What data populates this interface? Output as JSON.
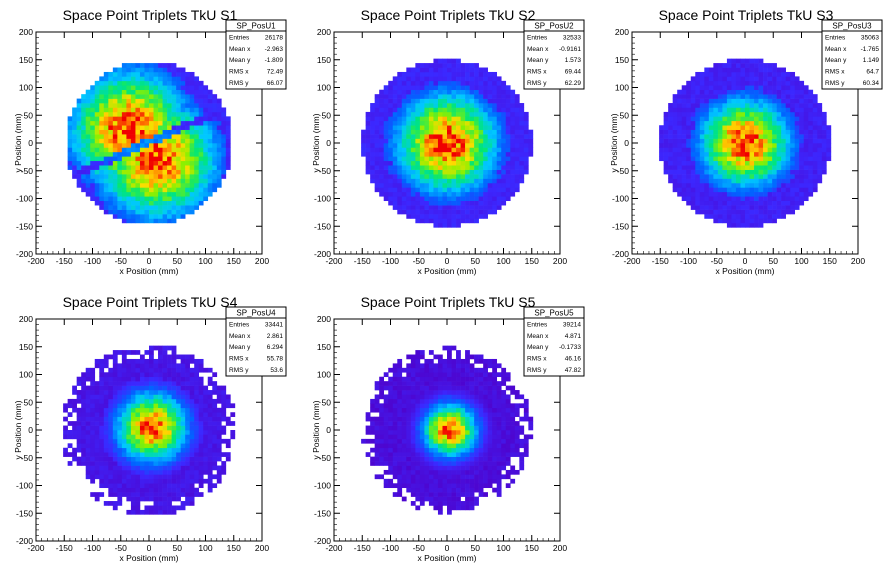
{
  "chart_data": [
    {
      "type": "heatmap",
      "title": "Space Point Triplets TkU S1",
      "xlabel": "x Position (mm)",
      "ylabel": "y Position (mm)",
      "xlim": [
        -200,
        200
      ],
      "ylim": [
        -200,
        200
      ],
      "xticks": [
        -200,
        -150,
        -100,
        -50,
        0,
        50,
        100,
        150,
        200
      ],
      "yticks": [
        -200,
        -150,
        -100,
        -50,
        0,
        50,
        100,
        150,
        200
      ],
      "grid": false,
      "stats_box": {
        "name": "SP_PosU1",
        "rows": [
          {
            "label": "Entries",
            "value": "26178"
          },
          {
            "label": "Mean x",
            "value": "-2.963"
          },
          {
            "label": "Mean y",
            "value": "-1.809"
          },
          {
            "label": "RMS x",
            "value": "72.49"
          },
          {
            "label": "RMS y",
            "value": "66.07"
          }
        ]
      },
      "distribution": {
        "radius": 147,
        "cx": -3,
        "cy": -2,
        "sigma": 72,
        "peaks": [
          [
            -35,
            25
          ],
          [
            15,
            -30
          ]
        ],
        "edge_density": 0.22
      }
    },
    {
      "type": "heatmap",
      "title": "Space Point Triplets TkU S2",
      "xlabel": "x Position (mm)",
      "ylabel": "y Position (mm)",
      "xlim": [
        -200,
        200
      ],
      "ylim": [
        -200,
        200
      ],
      "xticks": [
        -200,
        -150,
        -100,
        -50,
        0,
        50,
        100,
        150,
        200
      ],
      "yticks": [
        -200,
        -150,
        -100,
        -50,
        0,
        50,
        100,
        150,
        200
      ],
      "grid": false,
      "stats_box": {
        "name": "SP_PosU2",
        "rows": [
          {
            "label": "Entries",
            "value": "32533"
          },
          {
            "label": "Mean x",
            "value": "-0.9161"
          },
          {
            "label": "Mean y",
            "value": "1.573"
          },
          {
            "label": "RMS x",
            "value": "69.44"
          },
          {
            "label": "RMS y",
            "value": "62.29"
          }
        ]
      },
      "distribution": {
        "radius": 150,
        "cx": -1,
        "cy": 2,
        "sigma": 62,
        "peaks": [
          [
            0,
            0
          ]
        ],
        "edge_density": 0.2
      }
    },
    {
      "type": "heatmap",
      "title": "Space Point Triplets TkU S3",
      "xlabel": "x Position (mm)",
      "ylabel": "y Position (mm)",
      "xlim": [
        -200,
        200
      ],
      "ylim": [
        -200,
        200
      ],
      "xticks": [
        -200,
        -150,
        -100,
        -50,
        0,
        50,
        100,
        150,
        200
      ],
      "yticks": [
        -200,
        -150,
        -100,
        -50,
        0,
        50,
        100,
        150,
        200
      ],
      "grid": false,
      "stats_box": {
        "name": "SP_PosU3",
        "rows": [
          {
            "label": "Entries",
            "value": "35063"
          },
          {
            "label": "Mean x",
            "value": "-1.765"
          },
          {
            "label": "Mean y",
            "value": "1.149"
          },
          {
            "label": "RMS x",
            "value": "64.7"
          },
          {
            "label": "RMS y",
            "value": "60.34"
          }
        ]
      },
      "distribution": {
        "radius": 152,
        "cx": -2,
        "cy": 1,
        "sigma": 55,
        "peaks": [
          [
            0,
            0
          ]
        ],
        "edge_density": 0.18
      }
    },
    {
      "type": "heatmap",
      "title": "Space Point Triplets TkU S4",
      "xlabel": "x Position (mm)",
      "ylabel": "y Position (mm)",
      "xlim": [
        -200,
        200
      ],
      "ylim": [
        -200,
        200
      ],
      "xticks": [
        -200,
        -150,
        -100,
        -50,
        0,
        50,
        100,
        150,
        200
      ],
      "yticks": [
        -200,
        -150,
        -100,
        -50,
        0,
        50,
        100,
        150,
        200
      ],
      "grid": false,
      "stats_box": {
        "name": "SP_PosU4",
        "rows": [
          {
            "label": "Entries",
            "value": "33441"
          },
          {
            "label": "Mean x",
            "value": "2.861"
          },
          {
            "label": "Mean y",
            "value": "6.294"
          },
          {
            "label": "RMS x",
            "value": "55.78"
          },
          {
            "label": "RMS y",
            "value": "53.6"
          }
        ]
      },
      "distribution": {
        "radius": 155,
        "cx": 3,
        "cy": 6,
        "sigma": 42,
        "peaks": [
          [
            5,
            5
          ]
        ],
        "edge_density": 0.1
      }
    },
    {
      "type": "heatmap",
      "title": "Space Point Triplets TkU S5",
      "xlabel": "x Position (mm)",
      "ylabel": "y Position (mm)",
      "xlim": [
        -200,
        200
      ],
      "ylim": [
        -200,
        200
      ],
      "xticks": [
        -200,
        -150,
        -100,
        -50,
        0,
        50,
        100,
        150,
        200
      ],
      "yticks": [
        -200,
        -150,
        -100,
        -50,
        0,
        50,
        100,
        150,
        200
      ],
      "grid": false,
      "stats_box": {
        "name": "SP_PosU5",
        "rows": [
          {
            "label": "Entries",
            "value": "39214"
          },
          {
            "label": "Mean x",
            "value": "4.871"
          },
          {
            "label": "Mean y",
            "value": "-0.1733"
          },
          {
            "label": "RMS x",
            "value": "46.16"
          },
          {
            "label": "RMS y",
            "value": "47.82"
          }
        ]
      },
      "distribution": {
        "radius": 150,
        "cx": 5,
        "cy": 0,
        "sigma": 32,
        "peaks": [
          [
            5,
            0
          ]
        ],
        "edge_density": 0.04
      }
    }
  ]
}
